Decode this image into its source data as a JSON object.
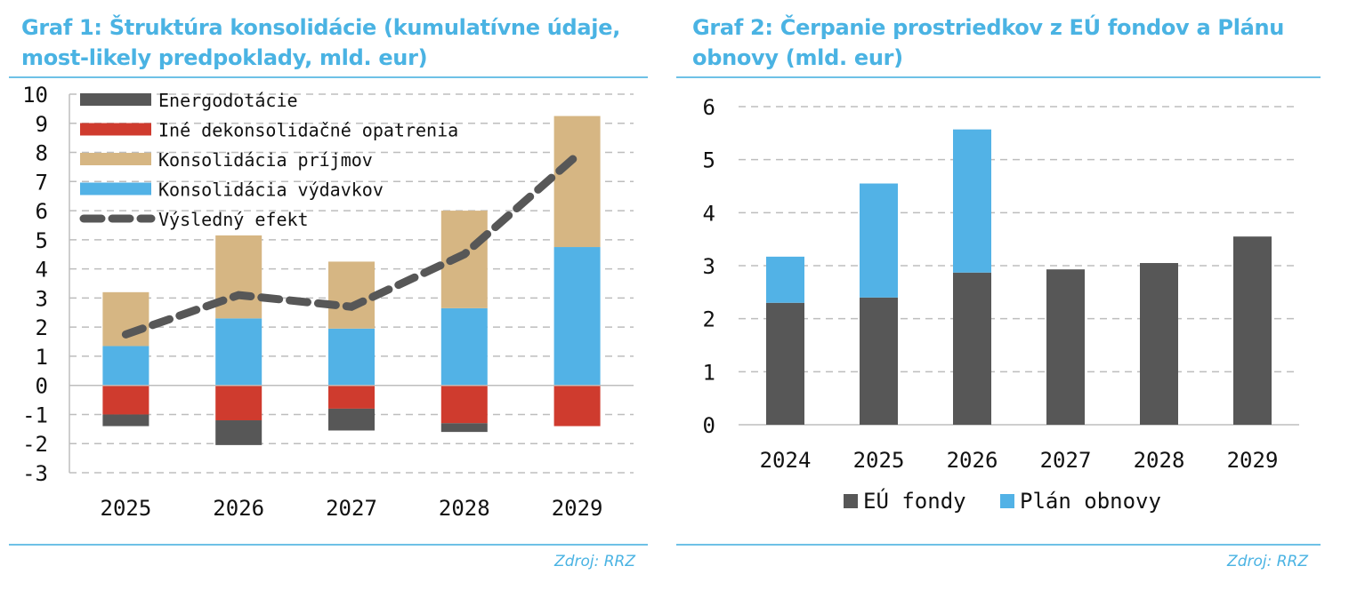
{
  "chart_data": [
    {
      "type": "bar",
      "stacked": true,
      "title": "Graf 1: Štruktúra konsolidácie (kumulatívne údaje, most-likely predpoklady, mld. eur)",
      "categories": [
        "2025",
        "2026",
        "2027",
        "2028",
        "2029"
      ],
      "ylim": [
        -3,
        10
      ],
      "yticks": [
        -3,
        -2,
        -1,
        0,
        1,
        2,
        3,
        4,
        5,
        6,
        7,
        8,
        9,
        10
      ],
      "grid": true,
      "legend_position": "top-left inside",
      "series": [
        {
          "name": "Energodotácie",
          "kind": "bar",
          "color": "#575757",
          "values": [
            -0.4,
            -0.85,
            -0.75,
            -0.3,
            0.0
          ]
        },
        {
          "name": "Iné dekonsolidačné opatrenia",
          "kind": "bar",
          "color": "#cf3b2e",
          "values": [
            -1.0,
            -1.2,
            -0.8,
            -1.3,
            -1.4
          ]
        },
        {
          "name": "Konsolidácia príjmov",
          "kind": "bar",
          "color": "#d6b683",
          "values": [
            1.85,
            2.85,
            2.3,
            3.35,
            4.5
          ]
        },
        {
          "name": "Konsolidácia výdavkov",
          "kind": "bar",
          "color": "#52b2e6",
          "values": [
            1.35,
            2.3,
            1.95,
            2.65,
            4.75
          ]
        },
        {
          "name": "Výsledný efekt",
          "kind": "line",
          "style": "dashed",
          "color": "#575757",
          "values": [
            1.75,
            3.1,
            2.7,
            4.5,
            7.9
          ]
        }
      ],
      "source": "Zdroj: RRZ"
    },
    {
      "type": "bar",
      "stacked": true,
      "title": "Graf 2: Čerpanie prostriedkov z EÚ fondov a Plánu obnovy (mld. eur)",
      "categories": [
        "2024",
        "2025",
        "2026",
        "2027",
        "2028",
        "2029"
      ],
      "ylim": [
        0,
        6
      ],
      "yticks": [
        0,
        1,
        2,
        3,
        4,
        5,
        6
      ],
      "grid": true,
      "legend_position": "bottom",
      "series": [
        {
          "name": "EÚ fondy",
          "kind": "bar",
          "color": "#575757",
          "values": [
            2.3,
            2.4,
            2.87,
            2.93,
            3.05,
            3.55
          ]
        },
        {
          "name": "Plán obnovy",
          "kind": "bar",
          "color": "#52b2e6",
          "values": [
            0.87,
            2.15,
            2.7,
            0,
            0,
            0
          ]
        }
      ],
      "source": "Zdroj: RRZ"
    }
  ]
}
